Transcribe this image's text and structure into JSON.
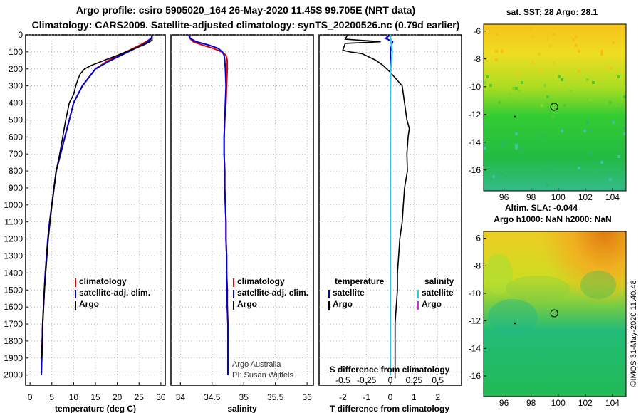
{
  "header": {
    "line1": "Argo profile: csiro 5905020_164 26-May-2020 11.45S 99.705E (NRT data)",
    "line2": "Climatology: CARS2009. Satellite-adjusted climatology: synTS_20200526.nc (0.79d earlier)"
  },
  "colors": {
    "climatology": "#dd0000",
    "satellite": "#0000dd",
    "argo": "#000000",
    "salinity_satellite": "#22ccee",
    "salinity_argo": "#dd22dd"
  },
  "chart_data": [
    {
      "id": "temperature",
      "type": "line",
      "xlabel": "temperature (deg C)",
      "ylabel": "",
      "xlim": [
        -1,
        31
      ],
      "ylim": [
        2060,
        0
      ],
      "xticks": [
        0,
        5,
        10,
        15,
        20,
        25,
        30
      ],
      "xtick_labels": [
        "0",
        "5",
        "10",
        "15",
        "20",
        "25",
        "30"
      ],
      "yticks": [
        0,
        100,
        200,
        300,
        400,
        500,
        600,
        700,
        800,
        900,
        1000,
        1100,
        1200,
        1300,
        1400,
        1500,
        1600,
        1700,
        1800,
        1900,
        2000
      ],
      "ytick_labels": [
        "0",
        "100",
        "200",
        "300",
        "400",
        "500",
        "600",
        "700",
        "800",
        "900",
        "1000",
        "1100",
        "1200",
        "1300",
        "1400",
        "1500",
        "1600",
        "1700",
        "1800",
        "1900",
        "2000"
      ],
      "grid": "dotted",
      "legend": [
        "climatology",
        "satellite-adj. clim.",
        "Argo"
      ],
      "series": [
        {
          "name": "climatology",
          "x": [
            28,
            27.8,
            26,
            22,
            18,
            15,
            13.5,
            12,
            11,
            10,
            9,
            8,
            7,
            6,
            5.5,
            5,
            4.5,
            4.1,
            3.8,
            3.5,
            3.3,
            3.1,
            2.9,
            2.8,
            2.7,
            2.6
          ],
          "y": [
            0,
            20,
            50,
            100,
            150,
            200,
            250,
            300,
            350,
            400,
            500,
            600,
            700,
            800,
            900,
            1000,
            1100,
            1200,
            1300,
            1400,
            1500,
            1600,
            1700,
            1800,
            1900,
            2000
          ]
        },
        {
          "name": "satellite-adj. clim.",
          "x": [
            28,
            27.9,
            26.5,
            22.5,
            18.5,
            15,
            13.5,
            12,
            11,
            10,
            9,
            8,
            7,
            6,
            5.5,
            5,
            4.5,
            4.1,
            3.8,
            3.5,
            3.3,
            3.1,
            2.9,
            2.8,
            2.7,
            2.6
          ],
          "y": [
            0,
            20,
            50,
            100,
            150,
            200,
            250,
            300,
            350,
            400,
            500,
            600,
            700,
            800,
            900,
            1000,
            1100,
            1200,
            1300,
            1400,
            1500,
            1600,
            1700,
            1800,
            1900,
            2000
          ]
        },
        {
          "name": "Argo",
          "x": [
            28,
            28,
            27.5,
            26,
            24,
            22,
            20,
            18,
            16,
            14,
            12.5,
            11.5,
            11,
            10.5,
            10,
            9,
            8.2,
            7.5,
            6.8,
            6.0,
            5.5,
            5.0,
            4.6,
            4.2,
            3.9,
            3.6,
            3.3,
            3.1,
            2.9,
            2.8,
            2.7
          ],
          "y": [
            0,
            30,
            40,
            60,
            80,
            100,
            120,
            140,
            160,
            180,
            200,
            230,
            260,
            300,
            350,
            400,
            500,
            600,
            700,
            800,
            900,
            1000,
            1100,
            1200,
            1300,
            1400,
            1500,
            1600,
            1700,
            1800,
            1900
          ]
        }
      ]
    },
    {
      "id": "salinity",
      "type": "line",
      "xlabel": "salinity",
      "ylabel": "",
      "xlim": [
        33.85,
        36.1
      ],
      "ylim": [
        2060,
        0
      ],
      "xticks": [
        34,
        34.5,
        35,
        35.5,
        36
      ],
      "xtick_labels": [
        "34",
        "34.5",
        "35",
        "35.5",
        "36"
      ],
      "grid": "dotted",
      "legend": [
        "climatology",
        "satellite-adj. clim.",
        "Argo"
      ],
      "annotations": [
        "Argo Australia",
        "PI: Susan Wijffels"
      ],
      "series": [
        {
          "name": "climatology",
          "x": [
            34.15,
            34.15,
            34.2,
            34.35,
            34.52,
            34.66,
            34.72,
            34.74,
            34.74,
            34.73,
            34.72,
            34.7,
            34.69,
            34.69,
            34.7,
            34.7,
            34.71,
            34.72,
            34.72,
            34.73,
            34.73,
            34.74,
            34.74,
            34.75,
            34.75,
            34.75
          ],
          "y": [
            0,
            20,
            40,
            60,
            80,
            100,
            120,
            150,
            200,
            300,
            400,
            500,
            600,
            700,
            800,
            900,
            1000,
            1100,
            1200,
            1300,
            1400,
            1500,
            1600,
            1700,
            1800,
            1900
          ]
        },
        {
          "name": "satellite-adj. clim.",
          "x": [
            34.13,
            34.15,
            34.25,
            34.45,
            34.6,
            34.66,
            34.69,
            34.7,
            34.71,
            34.72,
            34.71,
            34.7,
            34.69,
            34.69,
            34.7,
            34.7,
            34.71,
            34.72,
            34.72,
            34.73,
            34.73,
            34.74,
            34.74,
            34.75,
            34.75,
            34.75,
            34.75
          ],
          "y": [
            0,
            20,
            40,
            60,
            80,
            100,
            120,
            150,
            200,
            300,
            400,
            500,
            600,
            700,
            800,
            900,
            1000,
            1100,
            1200,
            1300,
            1400,
            1500,
            1600,
            1700,
            1800,
            1900,
            2000
          ]
        }
      ]
    },
    {
      "id": "difference",
      "type": "line",
      "xlabel": "T difference from climatology",
      "ylabel": "",
      "xlim": [
        -3,
        3
      ],
      "ylim": [
        2060,
        0
      ],
      "xticks": [
        -2,
        -1,
        0,
        1,
        2
      ],
      "xtick_labels": [
        "-2",
        "-1",
        "0",
        "1",
        "2"
      ],
      "secondary_xticks": [
        -0.5,
        -0.25,
        0,
        0.25,
        0.5
      ],
      "secondary_xtick_labels": [
        "-0.5",
        "-0.25",
        "0",
        "0.25",
        "0.5"
      ],
      "secondary_xlabel": "S difference from climatology",
      "grid": "dotted",
      "legend": [
        "temperature",
        "satellite",
        "Argo",
        "salinity",
        "satellite",
        "Argo"
      ],
      "series": [
        {
          "name": "temperature satellite",
          "x": [
            0,
            -0.2,
            0.1,
            0.05,
            0,
            0,
            0,
            0,
            0,
            0,
            0,
            0,
            0,
            0,
            0,
            0,
            0,
            0,
            0,
            0,
            0,
            0
          ],
          "y": [
            0,
            20,
            40,
            60,
            100,
            200,
            300,
            400,
            500,
            600,
            700,
            800,
            900,
            1000,
            1100,
            1200,
            1300,
            1400,
            1500,
            1600,
            1800,
            2000
          ]
        },
        {
          "name": "temperature Argo",
          "x": [
            -1.8,
            -1.9,
            -0.4,
            -1.9,
            -2.0,
            -1.7,
            -1.2,
            -0.9,
            -0.6,
            -0.3,
            0,
            0.5,
            0.6,
            0.7,
            0.8,
            0.75,
            0.7,
            0.72,
            0.6,
            0.55,
            0.5,
            0.4,
            0.35,
            0.3,
            0.3,
            0.25,
            0.2,
            0.2,
            0.2,
            0.2,
            0.2,
            0.2
          ],
          "y": [
            0,
            25,
            40,
            50,
            90,
            100,
            110,
            130,
            150,
            180,
            220,
            300,
            400,
            500,
            550,
            600,
            700,
            800,
            900,
            1000,
            1100,
            1200,
            1300,
            1400,
            1500,
            1600,
            1700,
            1800,
            1900,
            1950,
            2000,
            2020
          ]
        },
        {
          "name": "salinity satellite",
          "x": [
            0.01,
            0.04,
            0.08,
            0.05,
            0.02,
            0.01,
            0.0,
            0.0,
            0.0,
            0.0,
            0.0,
            0.0,
            0.0,
            0.0,
            0.0,
            0.0,
            0.0,
            0.0,
            0.0,
            0.0,
            0.0
          ],
          "y": [
            0,
            50,
            100,
            150,
            200,
            300,
            400,
            500,
            600,
            700,
            800,
            900,
            1000,
            1100,
            1200,
            1300,
            1400,
            1500,
            1600,
            1800,
            2000
          ]
        }
      ]
    },
    {
      "id": "sst-map",
      "type": "heatmap",
      "title": "sat. SST: 28 Argo: 28.1",
      "xticks": [
        96,
        98,
        100,
        102,
        104
      ],
      "xtick_labels": [
        "96",
        "98",
        "100",
        "102",
        "104"
      ],
      "yticks": [
        -6,
        -8,
        -10,
        -12,
        -14,
        -16
      ],
      "ytick_labels": [
        "-6",
        "-8",
        "-10",
        "-12",
        "-14",
        "-16"
      ],
      "xlim": [
        94.5,
        105
      ],
      "ylim": [
        -17.5,
        -5.5
      ],
      "marker": {
        "lon": 99.705,
        "lat": -11.45
      }
    },
    {
      "id": "sla-map",
      "type": "heatmap",
      "title": "Altim. SLA: -0.044",
      "subtitle": "Argo h1000: NaN h2000: NaN",
      "xticks": [
        96,
        98,
        100,
        102,
        104
      ],
      "xtick_labels": [
        "96",
        "98",
        "100",
        "102",
        "104"
      ],
      "yticks": [
        -6,
        -8,
        -10,
        -12,
        -14,
        -16
      ],
      "ytick_labels": [
        "-6",
        "-8",
        "-10",
        "-12",
        "-14",
        "-16"
      ],
      "xlim": [
        94.5,
        105
      ],
      "ylim": [
        -17.5,
        -5.5
      ],
      "marker": {
        "lon": 99.705,
        "lat": -11.45
      }
    }
  ],
  "footer": {
    "imos_stamp": "©IMOS 31-May-2020 11:40:48"
  }
}
